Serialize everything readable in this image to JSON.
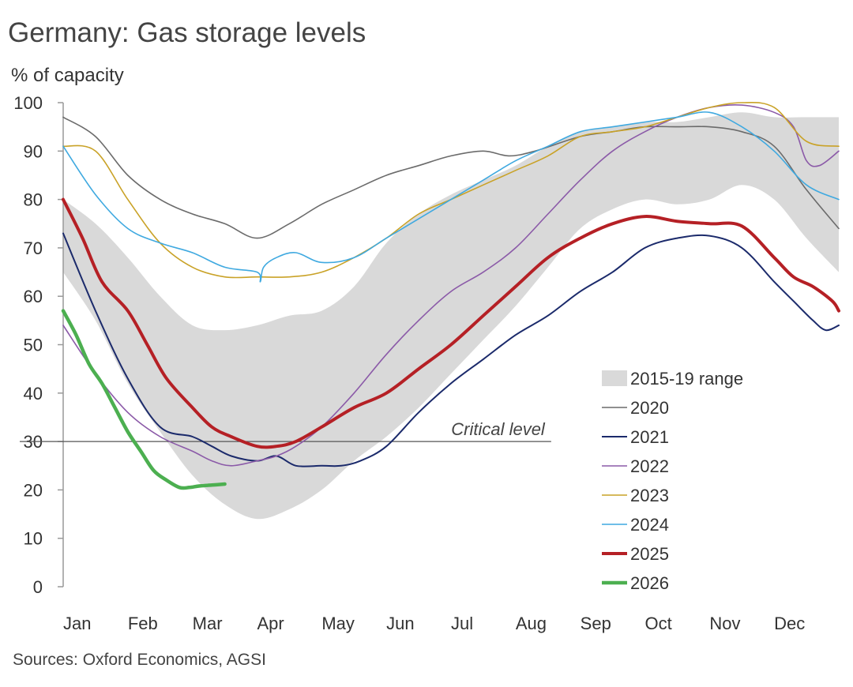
{
  "chart_data": {
    "type": "line",
    "title": "Germany: Gas storage levels",
    "ylabel": "% of capacity",
    "xlabel": "",
    "source": "Sources: Oxford Economics, AGSI",
    "ylim": [
      0,
      100
    ],
    "yticks": [
      0,
      10,
      20,
      30,
      40,
      50,
      60,
      70,
      80,
      90,
      100
    ],
    "xlim": [
      0,
      12
    ],
    "x_tick_labels": [
      "Jan",
      "Feb",
      "Mar",
      "Apr",
      "May",
      "Jun",
      "Jul",
      "Aug",
      "Sep",
      "Oct",
      "Nov",
      "Dec"
    ],
    "x_tick_positions": [
      0,
      1,
      2,
      3,
      4,
      5,
      6,
      7,
      8,
      9,
      10,
      11
    ],
    "x_unit": "months since start of January",
    "critical_level": {
      "label": "Critical level",
      "value": 30,
      "x_end": 7.55
    },
    "range": {
      "name": "2015-19 range",
      "color": "#d9d9d9",
      "x": [
        0,
        0.5,
        1,
        1.5,
        2,
        2.5,
        3,
        3.5,
        4,
        4.5,
        5,
        5.5,
        6,
        6.5,
        7,
        7.5,
        8,
        8.5,
        9,
        9.5,
        10,
        10.5,
        11,
        11.5,
        12
      ],
      "upper": [
        80,
        75,
        68,
        60,
        54,
        53,
        54,
        56,
        57,
        62,
        71,
        77,
        81,
        84,
        87,
        91,
        94,
        95,
        96,
        96,
        97,
        98,
        97,
        97,
        97
      ],
      "lower": [
        65,
        55,
        42,
        32,
        23,
        17,
        14,
        16,
        20,
        26,
        31,
        37,
        44,
        51,
        58,
        66,
        74,
        78,
        80,
        79,
        80,
        83,
        80,
        72,
        65
      ]
    },
    "series": [
      {
        "name": "2020",
        "color": "#6b6b6b",
        "width": 1.6,
        "x": [
          0,
          0.5,
          1,
          1.5,
          2,
          2.5,
          3,
          3.5,
          4,
          4.5,
          5,
          5.5,
          6,
          6.5,
          6.9,
          7.3,
          8,
          8.5,
          9,
          9.5,
          10,
          10.5,
          11,
          11.5,
          12
        ],
        "y": [
          97,
          93,
          85,
          80,
          77,
          75,
          72,
          75,
          79,
          82,
          85,
          87,
          89,
          90,
          89,
          90,
          93,
          94,
          95,
          95,
          95,
          94,
          91,
          82,
          74
        ]
      },
      {
        "name": "2021",
        "color": "#1b2a6b",
        "width": 2,
        "x": [
          0,
          0.5,
          1,
          1.5,
          2,
          2.3,
          2.6,
          3,
          3.3,
          3.6,
          4,
          4.3,
          4.6,
          5,
          5.5,
          6,
          6.5,
          7,
          7.5,
          8,
          8.5,
          9,
          9.5,
          10,
          10.5,
          11,
          11.3,
          11.6,
          11.8,
          12
        ],
        "y": [
          73,
          57,
          43,
          33,
          31,
          29,
          27,
          26,
          27,
          25,
          25,
          25,
          26,
          29,
          36,
          42,
          47,
          52,
          56,
          61,
          65,
          70,
          72,
          72.5,
          70,
          63,
          59,
          55,
          53,
          54
        ]
      },
      {
        "name": "2022",
        "color": "#8b5aa8",
        "width": 1.6,
        "x": [
          0,
          0.5,
          1,
          1.5,
          2,
          2.3,
          2.6,
          3,
          3.3,
          3.6,
          4,
          4.5,
          5,
          5.5,
          6,
          6.5,
          7,
          7.5,
          8,
          8.5,
          9,
          9.5,
          10,
          10.5,
          11,
          11.3,
          11.5,
          11.7,
          12
        ],
        "y": [
          54,
          44,
          36,
          31,
          28,
          26,
          25,
          26,
          27,
          29,
          33,
          40,
          48,
          55,
          61,
          65,
          70,
          77,
          84,
          90,
          94,
          97,
          99,
          99.5,
          98,
          95,
          88,
          87,
          90
        ]
      },
      {
        "name": "2023",
        "color": "#c9a227",
        "width": 1.6,
        "x": [
          0,
          0.5,
          1,
          1.5,
          2,
          2.5,
          3,
          3.5,
          4,
          4.5,
          5,
          5.5,
          6,
          6.5,
          7,
          7.5,
          8,
          8.5,
          9,
          9.5,
          10,
          10.5,
          11,
          11.5,
          12
        ],
        "y": [
          91,
          90,
          80,
          71,
          66,
          64,
          64,
          64,
          65,
          68,
          72,
          77,
          80,
          83,
          86,
          89,
          93,
          94,
          95,
          97,
          99,
          100,
          99,
          92,
          91
        ]
      },
      {
        "name": "2024",
        "color": "#3fa9e0",
        "width": 1.6,
        "x": [
          0,
          0.5,
          1,
          1.5,
          2,
          2.5,
          3,
          3.05,
          3.1,
          3.3,
          3.6,
          4,
          4.5,
          5,
          5.5,
          6,
          6.5,
          7,
          7.5,
          8,
          8.5,
          9,
          9.5,
          10,
          10.5,
          11,
          11.5,
          12
        ],
        "y": [
          91,
          81,
          74,
          71,
          69,
          66,
          65,
          63,
          66,
          68,
          69,
          67,
          68,
          72,
          76,
          80,
          84,
          88,
          91,
          94,
          95,
          96,
          97,
          98,
          95,
          90,
          83,
          80
        ]
      },
      {
        "name": "2025",
        "color": "#b52025",
        "width": 4,
        "x": [
          0,
          0.3,
          0.6,
          1,
          1.3,
          1.6,
          2,
          2.3,
          2.6,
          3,
          3.3,
          3.6,
          4,
          4.5,
          5,
          5.5,
          6,
          6.5,
          7,
          7.5,
          8,
          8.5,
          9,
          9.5,
          10,
          10.5,
          11,
          11.3,
          11.6,
          11.9,
          12
        ],
        "y": [
          80,
          72,
          63,
          57,
          50,
          43,
          37,
          33,
          31,
          29,
          29,
          30,
          33,
          37,
          40,
          45,
          50,
          56,
          62,
          68,
          72,
          75,
          76.5,
          75.5,
          75,
          74.5,
          68,
          64,
          62,
          59,
          57
        ]
      },
      {
        "name": "2026",
        "color": "#4caf50",
        "width": 4.5,
        "x": [
          0,
          0.2,
          0.4,
          0.6,
          0.8,
          1,
          1.2,
          1.4,
          1.6,
          1.8,
          1.95,
          2.1,
          2.3,
          2.5
        ],
        "y": [
          57,
          52,
          46,
          42,
          37,
          32,
          28,
          24,
          22,
          20.5,
          20.5,
          20.8,
          21,
          21.2
        ]
      }
    ]
  }
}
